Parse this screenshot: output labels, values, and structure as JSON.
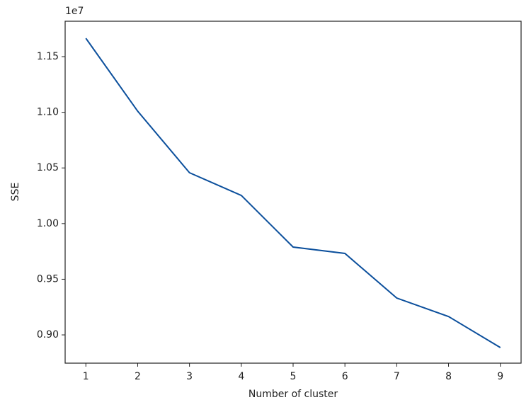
{
  "chart_data": {
    "type": "line",
    "x_label": "Number of cluster",
    "y_label": "SSE",
    "y_offset_text": "1e7",
    "x": [
      1,
      2,
      3,
      4,
      5,
      6,
      7,
      8,
      9
    ],
    "series": [
      {
        "color": "#0b4f9c",
        "values": [
          1.1665,
          1.101,
          1.0457,
          1.0253,
          0.9789,
          0.9732,
          0.9331,
          0.9165,
          0.8886
        ]
      }
    ],
    "xlim": [
      0.6,
      9.4
    ],
    "xticks": [
      1,
      2,
      3,
      4,
      5,
      6,
      7,
      8,
      9
    ],
    "ylim": [
      0.8746,
      1.1818
    ],
    "yticks": [
      {
        "value": 0.9,
        "label": "0.90"
      },
      0.95,
      {
        "value": 1,
        "label": "1.00"
      },
      1.05,
      {
        "value": 1.1,
        "label": "1.10"
      },
      1.15
    ]
  }
}
